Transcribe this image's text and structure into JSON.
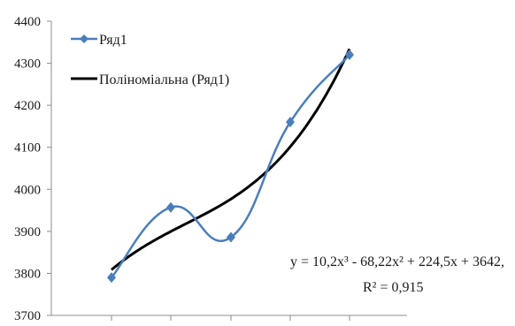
{
  "chart_data": {
    "type": "line",
    "title": "",
    "xlabel": "",
    "ylabel": "",
    "x": [
      1,
      2,
      3,
      4,
      5
    ],
    "ylim": [
      3700,
      4400
    ],
    "yticks": [
      "4400",
      "4300",
      "4200",
      "4100",
      "4000",
      "3900",
      "3800",
      "3700"
    ],
    "grid": false,
    "legend": "top-left",
    "series": [
      {
        "name": "Ряд1",
        "values": [
          3790,
          3957,
          3886,
          4160,
          4320
        ],
        "color": "#4a7ebb",
        "style": "smoothed line with diamond markers"
      },
      {
        "name": "Поліноміальна (Ряд1)",
        "trendline": "polynomial order 3",
        "coefficients": [
          10.2,
          -68.22,
          224.5,
          3642
        ],
        "color": "#000000"
      }
    ],
    "annotation": {
      "equation": "y = 10,2x³ - 68,22x² + 224,5x + 3642,",
      "r_squared": "R² = 0,915"
    }
  }
}
